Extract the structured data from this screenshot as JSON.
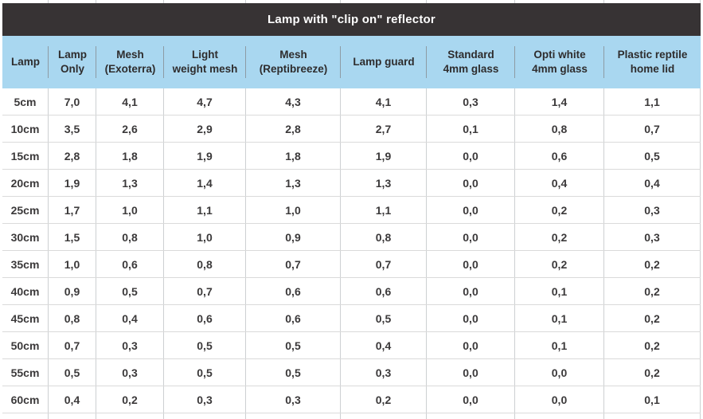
{
  "colors": {
    "title_bar_bg": "#373334",
    "title_text": "#ffffff",
    "header_bg": "#a9d7f0",
    "header_text": "#2e2c2d",
    "header_divider": "#8d9ba4",
    "data_text": "#3b393a",
    "divider": "#cdd0d2",
    "row_line": "#dadada"
  },
  "chart_data": {
    "type": "table",
    "title": "Lamp with \"clip on\" reflector",
    "columns": [
      {
        "line1": "Lamp",
        "line2": ""
      },
      {
        "line1": "Lamp",
        "line2": "Only"
      },
      {
        "line1": "Mesh",
        "line2": "(Exoterra)"
      },
      {
        "line1": "Light",
        "line2": "weight mesh"
      },
      {
        "line1": "Mesh",
        "line2": "(Reptibreeze)"
      },
      {
        "line1": "Lamp guard",
        "line2": ""
      },
      {
        "line1": "Standard",
        "line2": "4mm glass"
      },
      {
        "line1": "Opti white",
        "line2": "4mm glass"
      },
      {
        "line1": "Plastic reptile",
        "line2": "home lid"
      }
    ],
    "rows": [
      {
        "size": "5cm",
        "values": [
          "7,0",
          "4,1",
          "4,7",
          "4,3",
          "4,1",
          "0,3",
          "1,4",
          "1,1"
        ]
      },
      {
        "size": "10cm",
        "values": [
          "3,5",
          "2,6",
          "2,9",
          "2,8",
          "2,7",
          "0,1",
          "0,8",
          "0,7"
        ]
      },
      {
        "size": "15cm",
        "values": [
          "2,8",
          "1,8",
          "1,9",
          "1,8",
          "1,9",
          "0,0",
          "0,6",
          "0,5"
        ]
      },
      {
        "size": "20cm",
        "values": [
          "1,9",
          "1,3",
          "1,4",
          "1,3",
          "1,3",
          "0,0",
          "0,4",
          "0,4"
        ]
      },
      {
        "size": "25cm",
        "values": [
          "1,7",
          "1,0",
          "1,1",
          "1,0",
          "1,1",
          "0,0",
          "0,2",
          "0,3"
        ]
      },
      {
        "size": "30cm",
        "values": [
          "1,5",
          "0,8",
          "1,0",
          "0,9",
          "0,8",
          "0,0",
          "0,2",
          "0,3"
        ]
      },
      {
        "size": "35cm",
        "values": [
          "1,0",
          "0,6",
          "0,8",
          "0,7",
          "0,7",
          "0,0",
          "0,2",
          "0,2"
        ]
      },
      {
        "size": "40cm",
        "values": [
          "0,9",
          "0,5",
          "0,7",
          "0,6",
          "0,6",
          "0,0",
          "0,1",
          "0,2"
        ]
      },
      {
        "size": "45cm",
        "values": [
          "0,8",
          "0,4",
          "0,6",
          "0,6",
          "0,5",
          "0,0",
          "0,1",
          "0,2"
        ]
      },
      {
        "size": "50cm",
        "values": [
          "0,7",
          "0,3",
          "0,5",
          "0,5",
          "0,4",
          "0,0",
          "0,1",
          "0,2"
        ]
      },
      {
        "size": "55cm",
        "values": [
          "0,5",
          "0,3",
          "0,5",
          "0,5",
          "0,3",
          "0,0",
          "0,0",
          "0,2"
        ]
      },
      {
        "size": "60cm",
        "values": [
          "0,4",
          "0,2",
          "0,3",
          "0,3",
          "0,2",
          "0,0",
          "0,0",
          "0,1"
        ]
      }
    ]
  }
}
